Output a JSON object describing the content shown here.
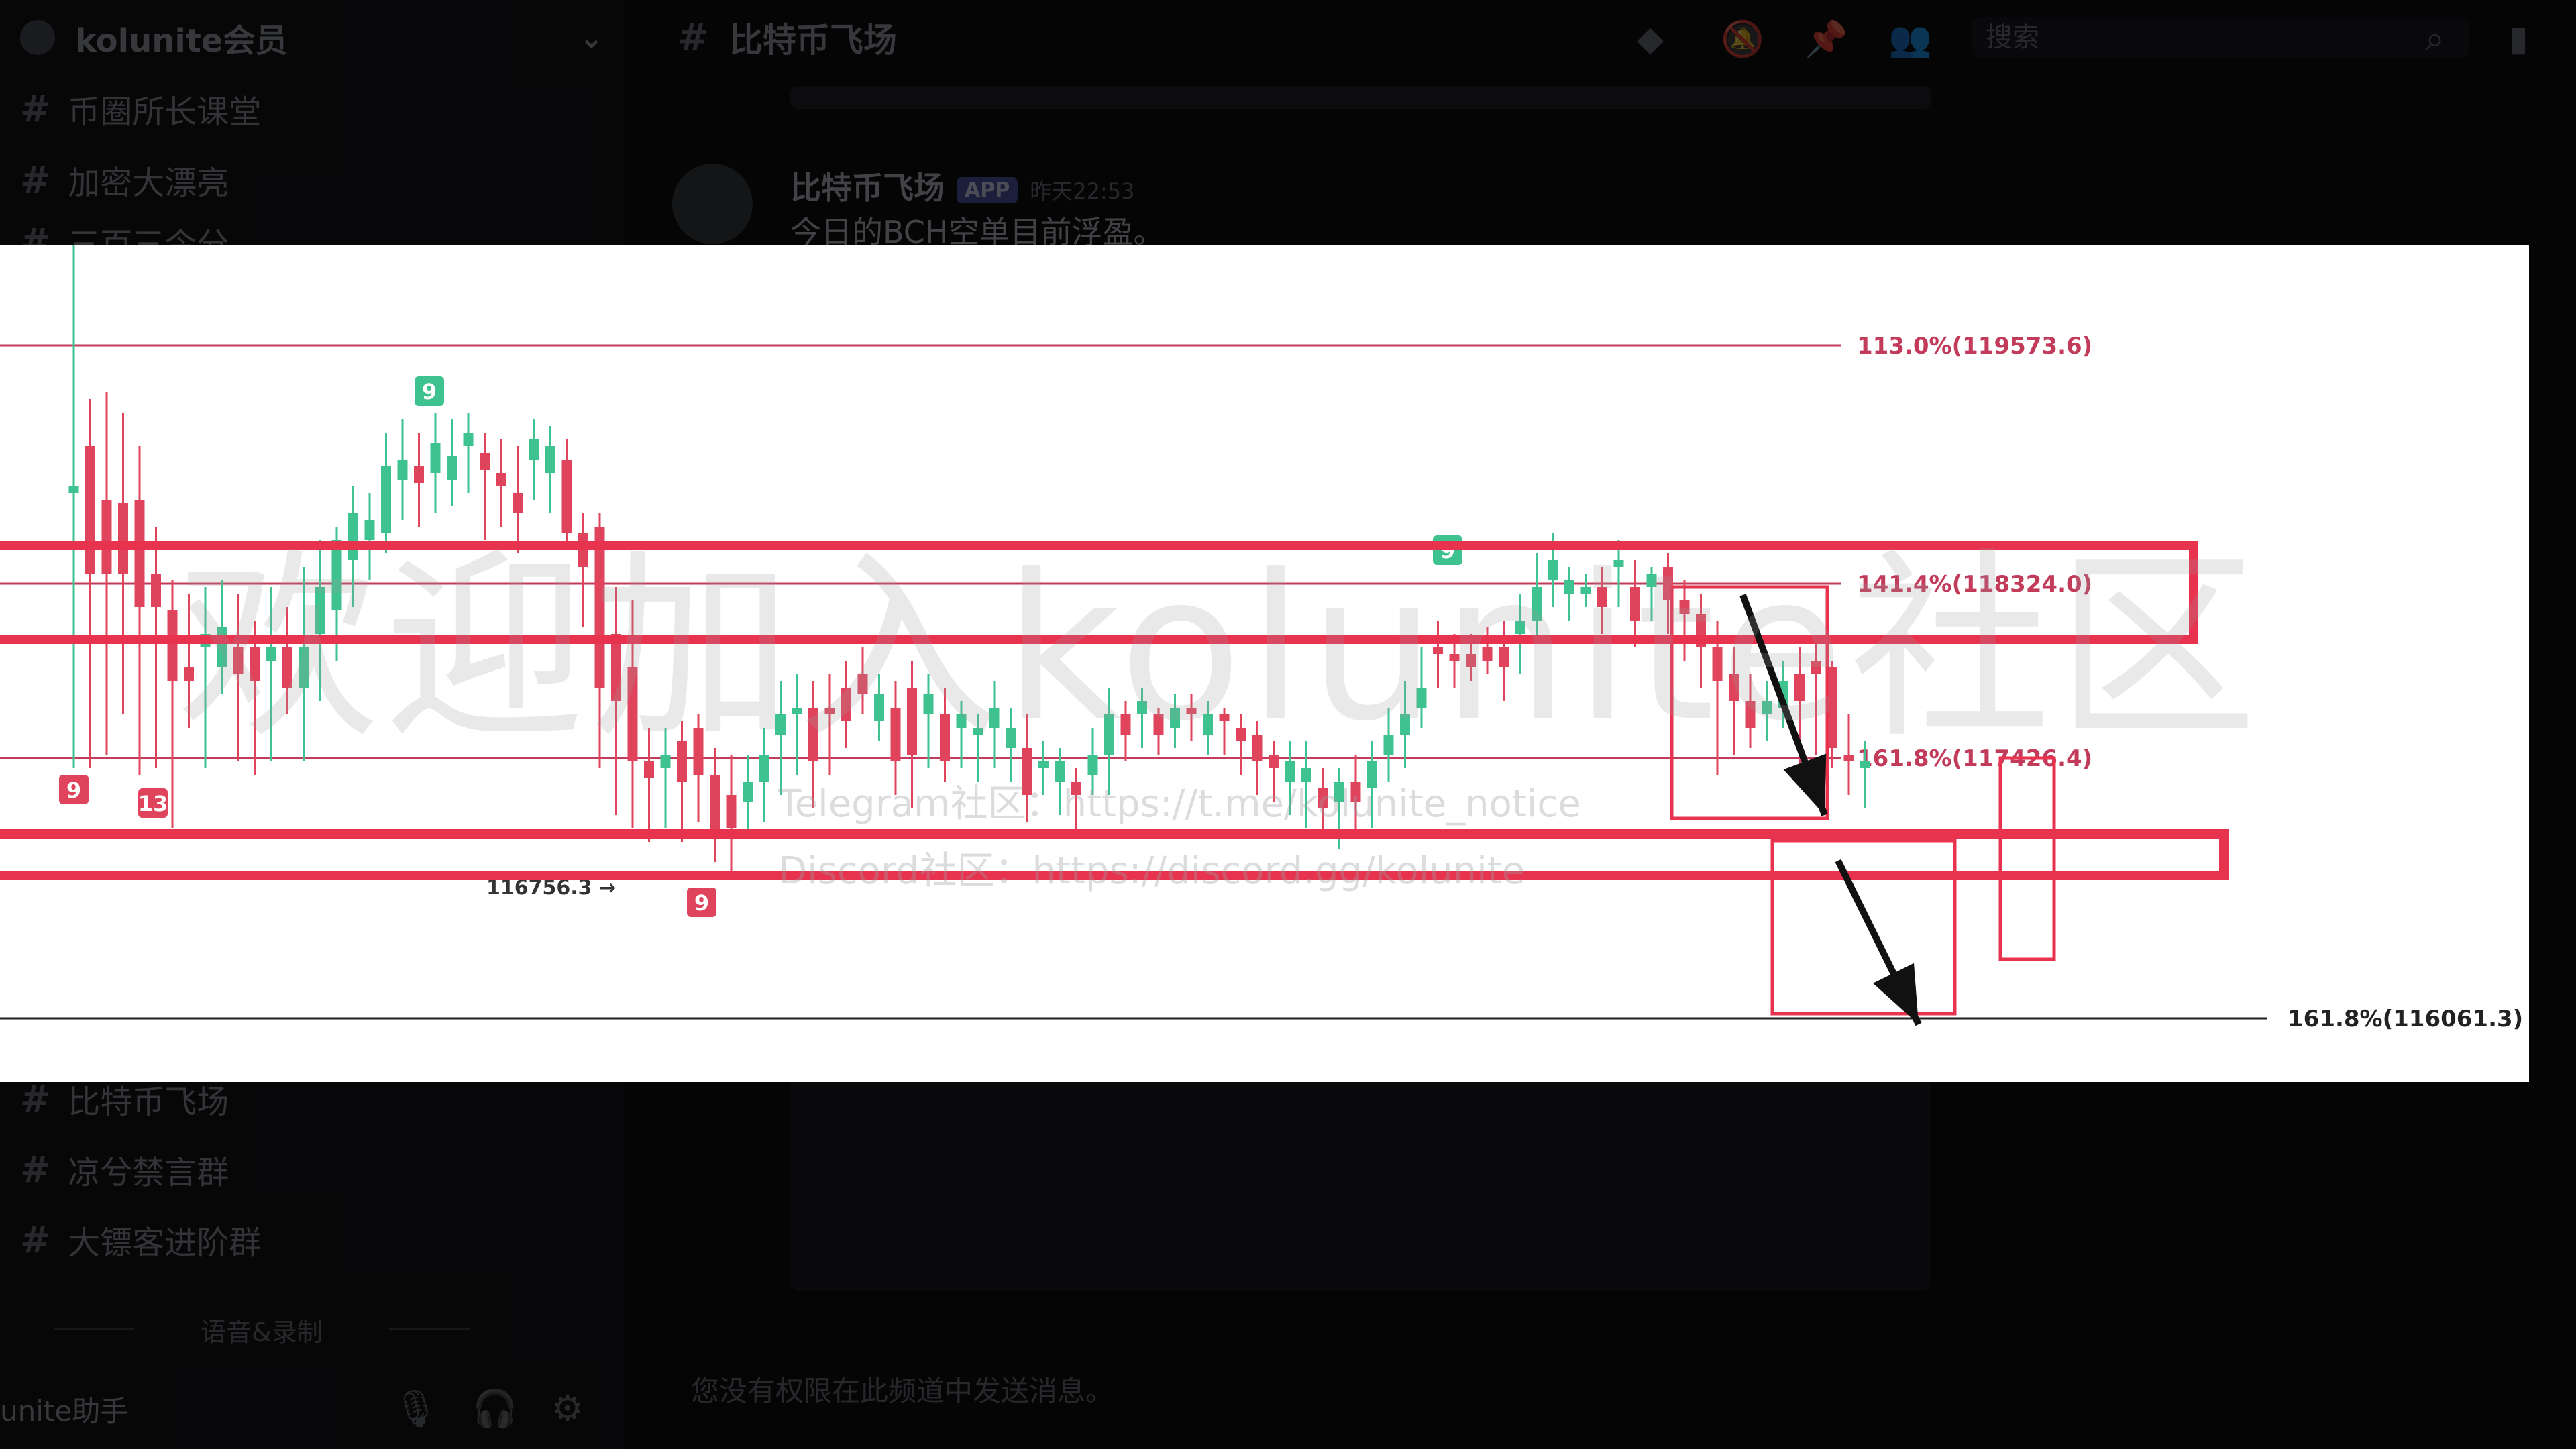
{
  "sidebar": {
    "server_name": "kolunite会员",
    "channels_top": [
      "币圈所长课堂",
      "加密大漂亮",
      "三百三今分"
    ],
    "channels_bottom": [
      "比特币飞场",
      "凉兮禁言群",
      "大镖客进阶群"
    ],
    "divider_label": "语音&录制",
    "user_name": "unite助手"
  },
  "topbar": {
    "channel_name": "比特币飞场",
    "search_placeholder": "搜索"
  },
  "message": {
    "author": "比特币飞场",
    "badge": "APP",
    "time": "昨天22:53",
    "text": "今日的BCH空单目前浮盈。"
  },
  "bottom_note": "您没有权限在此频道中发送消息。",
  "chart": {
    "fib_levels": [
      {
        "label": "113.0%(119573.6)",
        "value": 119573.6
      },
      {
        "label": "141.4%(118324.0)",
        "value": 118324.0
      },
      {
        "label": "161.8%(117426.4)",
        "value": 117426.4
      },
      {
        "label": "161.8%(116061.3)",
        "value": 116061.3
      }
    ],
    "low_marker": "116756.3",
    "seq_labels": [
      "9",
      "9",
      "13",
      "9",
      "9"
    ],
    "watermark": "欢迎加入kolunite社区",
    "watermark_telegram": "Telegram社区：https://t.me/kolunite_notice",
    "watermark_discord": "Discord社区：https://discord.gg/kolunite",
    "colors": {
      "up": "#3ec28f",
      "down": "#e0445c",
      "box": "#e8334f",
      "fib": "#c33b5a"
    }
  }
}
